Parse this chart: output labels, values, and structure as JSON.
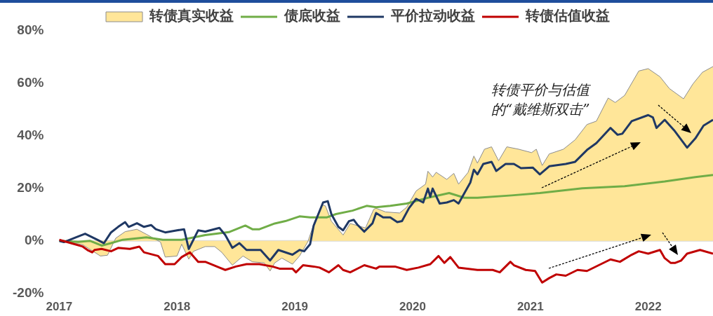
{
  "chart_data": {
    "type": "line",
    "xlim": [
      2017,
      2022.55
    ],
    "xticks": [
      2017,
      2018,
      2019,
      2020,
      2021,
      2022
    ],
    "ylim": [
      -20,
      80
    ],
    "yticks": [
      {
        "value": -20,
        "label": "-20%"
      },
      {
        "value": 0,
        "label": "0%"
      },
      {
        "value": 20,
        "label": "20%"
      },
      {
        "value": 40,
        "label": "40%"
      },
      {
        "value": 60,
        "label": "60%"
      },
      {
        "value": 80,
        "label": "80%"
      }
    ],
    "legend": "top",
    "marker": "none",
    "line_style": "solid",
    "annotations": [
      "转债平价与估值的“戴维斯双击”"
    ],
    "series": [
      {
        "name": "转债真实收益",
        "type": "area",
        "color": "#ffe699",
        "x": [
          2017.0,
          2017.08,
          2017.2,
          2017.35,
          2017.41,
          2017.48,
          2017.56,
          2017.66,
          2017.74,
          2017.86,
          2017.9,
          2018.0,
          2018.04,
          2018.1,
          2018.14,
          2018.24,
          2018.32,
          2018.38,
          2018.47,
          2018.56,
          2018.64,
          2018.74,
          2018.79,
          2018.83,
          2018.89,
          2018.98,
          2019.04,
          2019.11,
          2019.17,
          2019.23,
          2019.26,
          2019.31,
          2019.41,
          2019.47,
          2019.53,
          2019.6,
          2019.67,
          2019.69,
          2019.77,
          2019.89,
          2019.95,
          2020.03,
          2020.11,
          2020.13,
          2020.17,
          2020.2,
          2020.29,
          2020.35,
          2020.39,
          2020.47,
          2020.52,
          2020.55,
          2020.61,
          2020.67,
          2020.73,
          2020.8,
          2020.9,
          2021.01,
          2021.05,
          2021.1,
          2021.16,
          2021.28,
          2021.38,
          2021.48,
          2021.56,
          2021.66,
          2021.72,
          2021.8,
          2021.92,
          2022.0,
          2022.1,
          2022.18,
          2022.3,
          2022.38,
          2022.46,
          2022.55
        ],
        "values": [
          0,
          -0.5,
          -1.5,
          -5.8,
          -5.5,
          1,
          3.5,
          4.4,
          2.5,
          -0.5,
          -6.2,
          -5.8,
          -1.3,
          -7,
          -4,
          -2.2,
          -2.2,
          -4.4,
          -9.3,
          -5.8,
          -8,
          -8.4,
          -11.5,
          -8.4,
          -6.6,
          -8.9,
          -5.8,
          -0.4,
          7.5,
          13.7,
          13.3,
          7.5,
          2.2,
          6.6,
          5.8,
          4.9,
          12,
          12.4,
          11,
          10.6,
          12.8,
          19,
          21.6,
          26.5,
          24.3,
          26.1,
          23.4,
          25.7,
          21.6,
          26,
          32.3,
          29.6,
          34.9,
          35.8,
          30.5,
          35.8,
          34.9,
          33.6,
          34.9,
          28.7,
          33.1,
          34.9,
          38.5,
          44.3,
          45.6,
          54.4,
          52.7,
          55.4,
          64.7,
          65.6,
          62.5,
          58,
          54.1,
          59.8,
          64.2,
          66.4
        ]
      },
      {
        "name": "债底收益",
        "type": "line",
        "color": "#70ad47",
        "x": [
          2017.0,
          2017.16,
          2017.26,
          2017.36,
          2017.44,
          2017.54,
          2017.74,
          2017.88,
          2018.04,
          2018.24,
          2018.44,
          2018.58,
          2018.64,
          2018.7,
          2018.83,
          2018.92,
          2019.04,
          2019.13,
          2019.27,
          2019.35,
          2019.49,
          2019.61,
          2019.69,
          2019.81,
          2019.95,
          2020.13,
          2020.31,
          2020.44,
          2020.55,
          2020.84,
          2021.08,
          2021.44,
          2021.8,
          2022.14,
          2022.4,
          2022.55
        ],
        "values": [
          0,
          -0.4,
          0,
          -1.8,
          -0.9,
          0.4,
          1.3,
          0.4,
          0.4,
          2.2,
          3.3,
          5.8,
          4.4,
          4.4,
          6.6,
          7.5,
          9.3,
          8.9,
          8.9,
          10.2,
          11.5,
          13.3,
          12.8,
          13.3,
          14.2,
          16.4,
          18.2,
          16.4,
          16.4,
          17.3,
          18.2,
          20,
          20.8,
          22.6,
          24.3,
          25.1
        ]
      },
      {
        "name": "平价拉动收益",
        "type": "line",
        "color": "#1f3864",
        "x": [
          2017.0,
          2017.04,
          2017.14,
          2017.22,
          2017.32,
          2017.38,
          2017.44,
          2017.5,
          2017.56,
          2017.59,
          2017.66,
          2017.72,
          2017.78,
          2017.82,
          2017.9,
          2018.0,
          2018.06,
          2018.1,
          2018.18,
          2018.24,
          2018.36,
          2018.41,
          2018.47,
          2018.53,
          2018.59,
          2018.71,
          2018.79,
          2018.86,
          2018.98,
          2019.04,
          2019.08,
          2019.13,
          2019.16,
          2019.24,
          2019.28,
          2019.31,
          2019.37,
          2019.41,
          2019.46,
          2019.5,
          2019.53,
          2019.59,
          2019.66,
          2019.69,
          2019.75,
          2019.81,
          2019.87,
          2019.91,
          2019.97,
          2020.03,
          2020.09,
          2020.13,
          2020.15,
          2020.17,
          2020.23,
          2020.29,
          2020.35,
          2020.39,
          2020.49,
          2020.52,
          2020.55,
          2020.6,
          2020.67,
          2020.71,
          2020.79,
          2020.86,
          2020.92,
          2021.02,
          2021.08,
          2021.16,
          2021.3,
          2021.38,
          2021.48,
          2021.56,
          2021.68,
          2021.74,
          2021.78,
          2021.86,
          2022.0,
          2022.04,
          2022.07,
          2022.14,
          2022.22,
          2022.33,
          2022.4,
          2022.47,
          2022.55
        ],
        "values": [
          0,
          -0.5,
          1.3,
          2.7,
          0.5,
          -0.9,
          3.2,
          5.3,
          7.1,
          5.3,
          6.7,
          5.3,
          6,
          4.4,
          3.2,
          4,
          4.4,
          -3.1,
          4,
          3.5,
          4.9,
          2.2,
          -2.7,
          -0.9,
          -3.5,
          -3.5,
          -7.5,
          -3.5,
          -5.3,
          -3.5,
          -4,
          -1.3,
          5.8,
          14.6,
          15.1,
          10.2,
          5.3,
          4,
          7.5,
          8,
          6.2,
          3.5,
          6.7,
          10.6,
          8.9,
          8.9,
          7.1,
          7.5,
          12.5,
          16,
          14.6,
          19.9,
          16.8,
          19.9,
          14.2,
          14.6,
          15.5,
          14.2,
          22.2,
          27.1,
          25.3,
          29.3,
          30.1,
          26.6,
          29.3,
          29.3,
          27.7,
          27.9,
          25.3,
          28.4,
          29.3,
          30.1,
          34.6,
          37.2,
          43,
          40.4,
          40.8,
          45.6,
          47.9,
          47,
          43,
          46.1,
          42.1,
          35.5,
          39,
          43.9,
          46.1
        ]
      },
      {
        "name": "转债估值收益",
        "type": "line",
        "color": "#c00000",
        "x": [
          2017.0,
          2017.1,
          2017.2,
          2017.24,
          2017.28,
          2017.3,
          2017.36,
          2017.44,
          2017.5,
          2017.6,
          2017.68,
          2017.72,
          2017.84,
          2017.9,
          2017.98,
          2018.04,
          2018.11,
          2018.18,
          2018.24,
          2018.36,
          2018.41,
          2018.5,
          2018.59,
          2018.7,
          2018.81,
          2018.87,
          2018.98,
          2019.01,
          2019.07,
          2019.16,
          2019.21,
          2019.29,
          2019.37,
          2019.41,
          2019.47,
          2019.59,
          2019.69,
          2019.72,
          2019.85,
          2019.95,
          2020.05,
          2020.15,
          2020.22,
          2020.27,
          2020.32,
          2020.39,
          2020.55,
          2020.68,
          2020.74,
          2020.83,
          2020.86,
          2020.96,
          2021.04,
          2021.1,
          2021.16,
          2021.22,
          2021.3,
          2021.4,
          2021.48,
          2021.58,
          2021.68,
          2021.76,
          2021.86,
          2021.92,
          2022.0,
          2022.1,
          2022.14,
          2022.19,
          2022.23,
          2022.28,
          2022.33,
          2022.44,
          2022.55
        ],
        "values": [
          0.4,
          -0.9,
          -2.2,
          -3.5,
          -4.4,
          -3.5,
          -3.1,
          -4,
          -2.7,
          -3.1,
          -2.2,
          -4.4,
          -5.8,
          -8.9,
          -8.9,
          -6.2,
          -4.4,
          -8,
          -8,
          -10.2,
          -11.1,
          -9.8,
          -8.9,
          -8.9,
          -9.8,
          -10.6,
          -10.6,
          -12,
          -9.3,
          -9.8,
          -10.2,
          -12,
          -9.3,
          -11.1,
          -12,
          -9.3,
          -10.6,
          -9.8,
          -9.8,
          -11.1,
          -10.2,
          -8.9,
          -5.8,
          -8.4,
          -6.2,
          -10.2,
          -11.1,
          -11.1,
          -12,
          -8,
          -9.3,
          -11.1,
          -11.5,
          -15.9,
          -14.2,
          -12.8,
          -13.3,
          -11.1,
          -11.5,
          -9.3,
          -7.1,
          -8,
          -5.3,
          -4,
          -4.9,
          -3.5,
          -6.6,
          -8.4,
          -8.4,
          -7.5,
          -4.9,
          -3.5,
          -4.9
        ]
      }
    ]
  }
}
